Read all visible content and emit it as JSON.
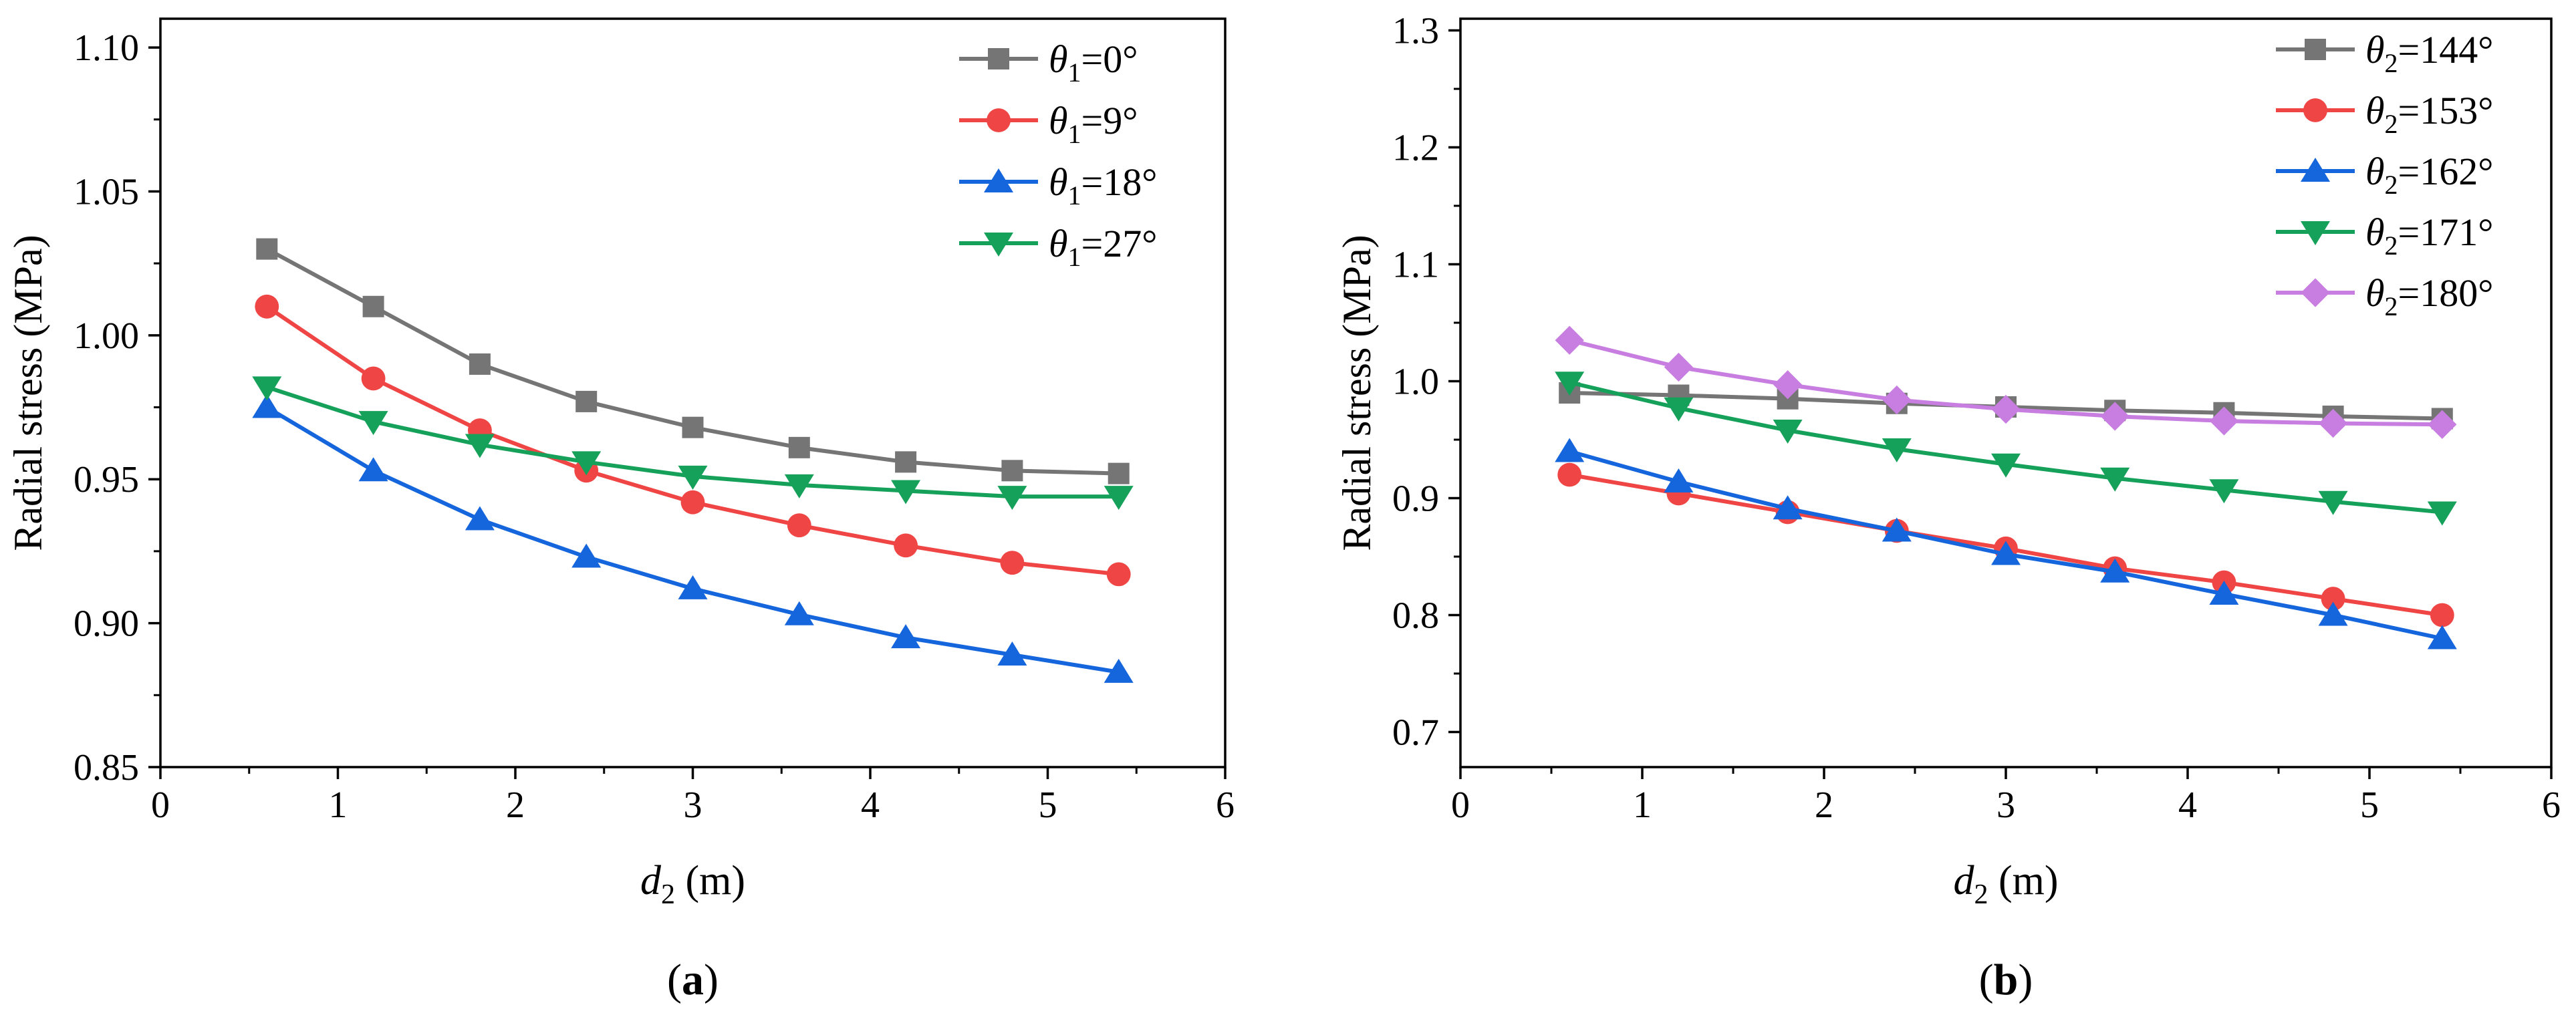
{
  "chart_data": [
    {
      "type": "line",
      "panel_label": "(a)",
      "title": "",
      "xlabel": {
        "symbol": "d",
        "subscript": "2",
        "unit": " (m)"
      },
      "ylabel": "Radial stress (MPa)",
      "xlim": [
        0,
        6
      ],
      "ylim": [
        0.85,
        1.11
      ],
      "xticks": [
        "0",
        "1",
        "2",
        "3",
        "4",
        "5",
        "6"
      ],
      "yticks": [
        "0.85",
        "0.90",
        "0.95",
        "1.00",
        "1.05",
        "1.10"
      ],
      "legend_position": "top-right",
      "grid": false,
      "x": [
        0.6,
        1.2,
        1.8,
        2.4,
        3.0,
        3.6,
        4.2,
        4.8,
        5.4
      ],
      "series": [
        {
          "name": "=0°",
          "symbol": "θ",
          "subscript": "1",
          "color": "#757575",
          "marker": "square",
          "values": [
            1.03,
            1.01,
            0.99,
            0.977,
            0.968,
            0.961,
            0.956,
            0.953,
            0.952
          ]
        },
        {
          "name": "=9°",
          "symbol": "θ",
          "subscript": "1",
          "color": "#f04545",
          "marker": "circle",
          "values": [
            1.01,
            0.985,
            0.967,
            0.953,
            0.942,
            0.934,
            0.927,
            0.921,
            0.917
          ]
        },
        {
          "name": "=18°",
          "symbol": "θ",
          "subscript": "1",
          "color": "#1565dc",
          "marker": "triangle-up",
          "values": [
            0.975,
            0.953,
            0.936,
            0.923,
            0.912,
            0.903,
            0.895,
            0.889,
            0.883
          ]
        },
        {
          "name": "=27°",
          "symbol": "θ",
          "subscript": "1",
          "color": "#16a15a",
          "marker": "triangle-down",
          "values": [
            0.982,
            0.97,
            0.962,
            0.956,
            0.951,
            0.948,
            0.946,
            0.944,
            0.944
          ]
        }
      ]
    },
    {
      "type": "line",
      "panel_label": "(b)",
      "title": "",
      "xlabel": {
        "symbol": "d",
        "subscript": "2",
        "unit": " (m)"
      },
      "ylabel": "Radial stress (MPa)",
      "xlim": [
        0,
        6
      ],
      "ylim": [
        0.67,
        1.31
      ],
      "xticks": [
        "0",
        "1",
        "2",
        "3",
        "4",
        "5",
        "6"
      ],
      "yticks": [
        "0.7",
        "0.8",
        "0.9",
        "1.0",
        "1.1",
        "1.2",
        "1.3"
      ],
      "legend_position": "top-right",
      "grid": false,
      "x": [
        0.6,
        1.2,
        1.8,
        2.4,
        3.0,
        3.6,
        4.2,
        4.8,
        5.4
      ],
      "series": [
        {
          "name": "=144°",
          "symbol": "θ",
          "subscript": "2",
          "color": "#757575",
          "marker": "square",
          "values": [
            0.99,
            0.988,
            0.985,
            0.981,
            0.978,
            0.975,
            0.973,
            0.97,
            0.968
          ]
        },
        {
          "name": "=153°",
          "symbol": "θ",
          "subscript": "2",
          "color": "#f04545",
          "marker": "circle",
          "values": [
            0.92,
            0.904,
            0.888,
            0.872,
            0.857,
            0.84,
            0.828,
            0.814,
            0.8
          ]
        },
        {
          "name": "=162°",
          "symbol": "θ",
          "subscript": "2",
          "color": "#1565dc",
          "marker": "triangle-up",
          "values": [
            0.94,
            0.914,
            0.891,
            0.872,
            0.852,
            0.837,
            0.818,
            0.8,
            0.78
          ]
        },
        {
          "name": "=171°",
          "symbol": "θ",
          "subscript": "2",
          "color": "#16a15a",
          "marker": "triangle-down",
          "values": [
            0.999,
            0.977,
            0.958,
            0.942,
            0.929,
            0.917,
            0.907,
            0.897,
            0.888
          ]
        },
        {
          "name": "=180°",
          "symbol": "θ",
          "subscript": "2",
          "color": "#c77ee0",
          "marker": "diamond",
          "values": [
            1.035,
            1.012,
            0.997,
            0.984,
            0.976,
            0.97,
            0.966,
            0.964,
            0.963
          ]
        }
      ]
    }
  ]
}
